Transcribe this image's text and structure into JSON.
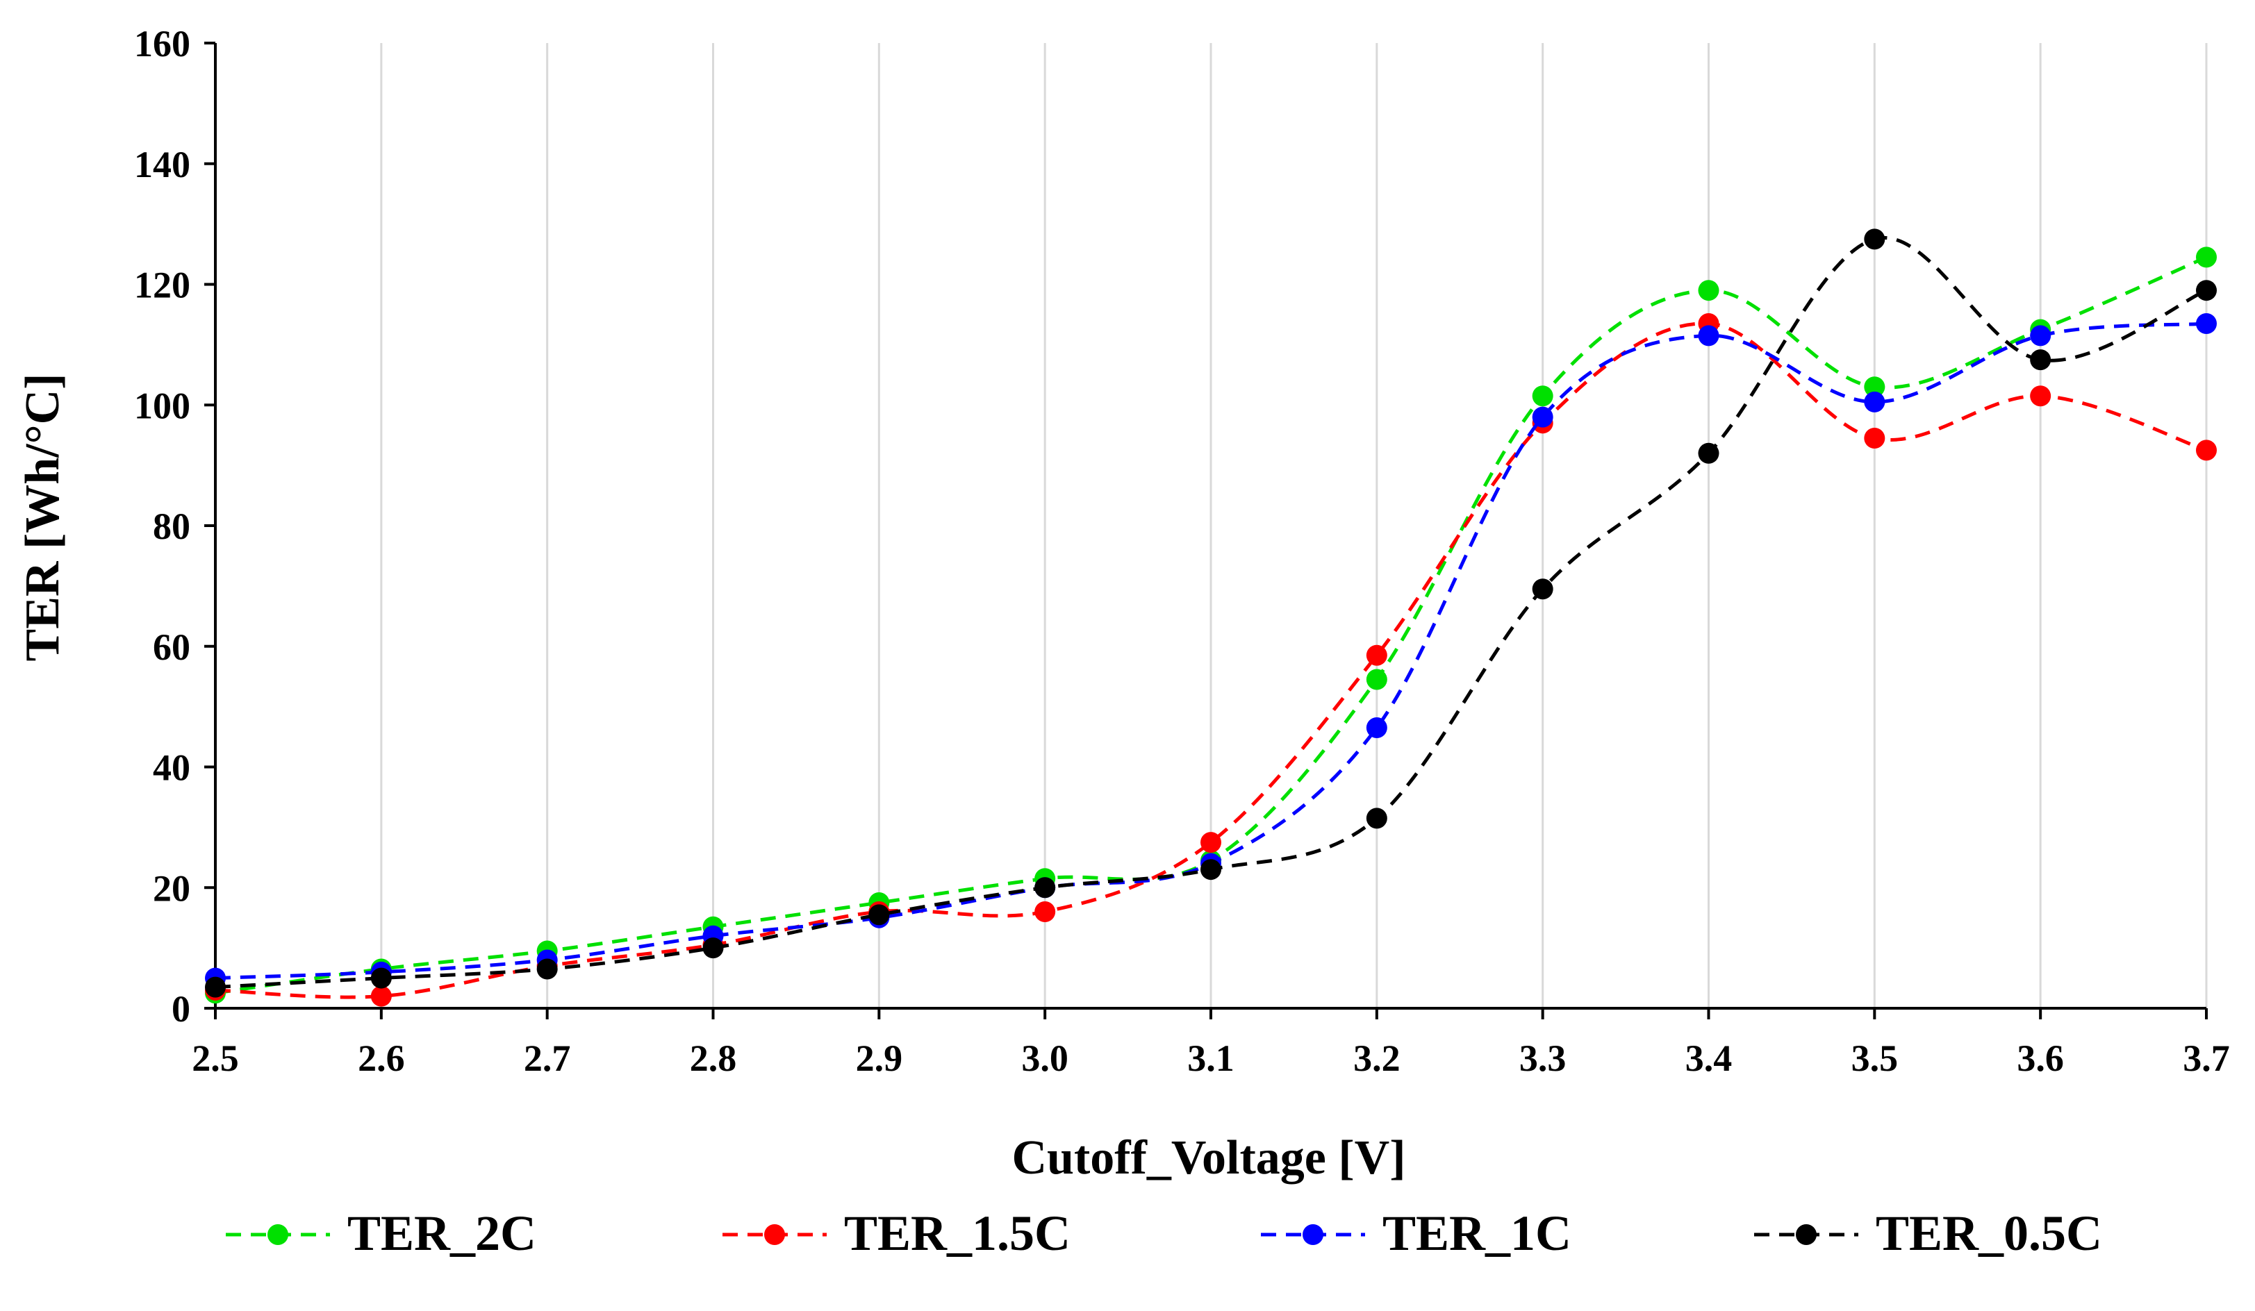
{
  "chart_data": {
    "type": "line",
    "title": "",
    "xlabel": "Cutoff_Voltage [V]",
    "ylabel": "TER [Wh/°C]",
    "x": [
      2.5,
      2.6,
      2.7,
      2.8,
      2.9,
      3.0,
      3.1,
      3.2,
      3.3,
      3.4,
      3.5,
      3.6,
      3.7
    ],
    "xtick_labels": [
      "2.5",
      "2.6",
      "2.7",
      "2.8",
      "2.9",
      "3.0",
      "3.1",
      "3.2",
      "3.3",
      "3.4",
      "3.5",
      "3.6",
      "3.7"
    ],
    "xlim": [
      2.5,
      3.7
    ],
    "ylim": [
      0,
      160
    ],
    "yticks": [
      0,
      20,
      40,
      60,
      80,
      100,
      120,
      140,
      160
    ],
    "ytick_labels": [
      "0",
      "20",
      "40",
      "60",
      "80",
      "100",
      "120",
      "140",
      "160"
    ],
    "grid": "vertical",
    "legend_position": "bottom",
    "series": [
      {
        "name": "TER_2C",
        "color": "#00e000",
        "values": [
          2.5,
          6.5,
          9.5,
          13.5,
          17.5,
          21.5,
          24.5,
          54.5,
          101.5,
          119.0,
          103.0,
          112.5,
          124.5
        ]
      },
      {
        "name": "TER_1.5C",
        "color": "#ff0000",
        "values": [
          3.0,
          2.0,
          7.0,
          10.5,
          16.0,
          16.0,
          27.5,
          58.5,
          97.0,
          113.5,
          94.5,
          101.5,
          92.5
        ]
      },
      {
        "name": "TER_1C",
        "color": "#0000ff",
        "values": [
          5.0,
          6.0,
          8.0,
          12.0,
          15.0,
          20.0,
          24.0,
          46.5,
          98.0,
          111.5,
          100.5,
          111.5,
          113.5
        ]
      },
      {
        "name": "TER_0.5C",
        "color": "#000000",
        "values": [
          3.5,
          5.0,
          6.5,
          10.0,
          15.5,
          20.0,
          23.0,
          31.5,
          69.5,
          92.0,
          127.5,
          107.5,
          119.0
        ]
      }
    ]
  }
}
